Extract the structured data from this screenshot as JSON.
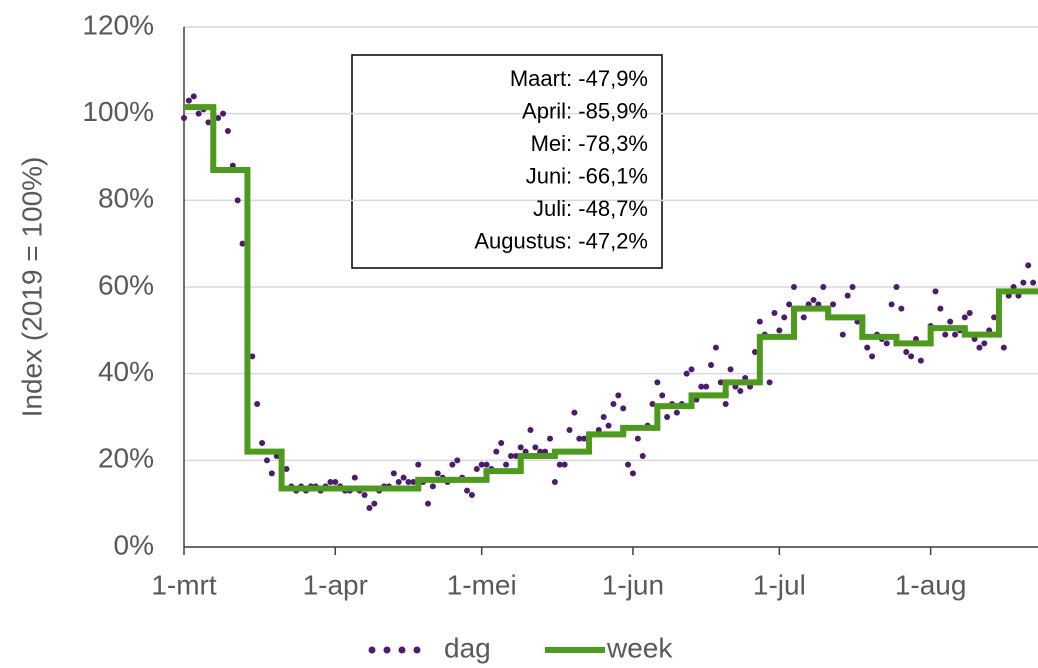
{
  "chart_data": {
    "type": "line",
    "ylabel": "Index (2019 = 100%)",
    "xlim": [
      0,
      175
    ],
    "xticks": [
      {
        "value": 0,
        "label": "1-mrt"
      },
      {
        "value": 31,
        "label": "1-apr"
      },
      {
        "value": 61,
        "label": "1-mei"
      },
      {
        "value": 92,
        "label": "1-jun"
      },
      {
        "value": 122,
        "label": "1-jul"
      },
      {
        "value": 153,
        "label": "1-aug"
      }
    ],
    "ylim": [
      0,
      120
    ],
    "yticks": [
      {
        "value": 0,
        "label": "0%"
      },
      {
        "value": 20,
        "label": "20%"
      },
      {
        "value": 40,
        "label": "40%"
      },
      {
        "value": 60,
        "label": "60%"
      },
      {
        "value": 80,
        "label": "80%"
      },
      {
        "value": 100,
        "label": "100%"
      },
      {
        "value": 120,
        "label": "120%"
      }
    ],
    "grid": true,
    "legend": "bottom",
    "annotations": [
      "Maart: -47,9%",
      "April: -85,9%",
      "Mei: -78,3%",
      "Juni: -66,1%",
      "Juli: -48,7%",
      "Augustus: -47,2%"
    ],
    "series": [
      {
        "name": "dag",
        "color": "#4b1c6e",
        "x": [
          0,
          1,
          2,
          3,
          4,
          5,
          6,
          7,
          8,
          9,
          10,
          11,
          12,
          13,
          14,
          15,
          16,
          17,
          18,
          19,
          20,
          21,
          22,
          23,
          24,
          25,
          26,
          27,
          28,
          29,
          30,
          31,
          32,
          33,
          34,
          35,
          36,
          37,
          38,
          39,
          40,
          41,
          42,
          43,
          44,
          45,
          46,
          47,
          48,
          49,
          50,
          51,
          52,
          53,
          54,
          55,
          56,
          57,
          58,
          59,
          60,
          61,
          62,
          63,
          64,
          65,
          66,
          67,
          68,
          69,
          70,
          71,
          72,
          73,
          74,
          75,
          76,
          77,
          78,
          79,
          80,
          81,
          82,
          83,
          84,
          85,
          86,
          87,
          88,
          89,
          90,
          91,
          92,
          93,
          94,
          95,
          96,
          97,
          98,
          99,
          100,
          101,
          102,
          103,
          104,
          105,
          106,
          107,
          108,
          109,
          110,
          111,
          112,
          113,
          114,
          115,
          116,
          117,
          118,
          119,
          120,
          121,
          122,
          123,
          124,
          125,
          126,
          127,
          128,
          129,
          130,
          131,
          132,
          133,
          134,
          135,
          136,
          137,
          138,
          139,
          140,
          141,
          142,
          143,
          144,
          145,
          146,
          147,
          148,
          149,
          150,
          151,
          152,
          153,
          154,
          155,
          156,
          157,
          158,
          159,
          160,
          161,
          162,
          163,
          164,
          165,
          166,
          167,
          168,
          169,
          170,
          171,
          172,
          173,
          174
        ],
        "values": [
          99,
          103,
          104,
          100,
          101,
          98,
          100,
          99,
          100,
          96,
          88,
          80,
          70,
          56,
          44,
          33,
          24,
          20,
          17,
          21,
          22,
          18,
          14,
          13,
          14,
          13,
          14,
          14,
          13,
          14,
          15,
          15,
          14,
          13,
          13,
          16,
          13,
          12,
          9,
          10,
          13,
          14,
          14,
          17,
          15,
          16,
          15,
          15,
          19,
          15,
          10,
          14,
          17,
          16,
          15,
          19,
          20,
          16,
          13,
          12,
          18,
          19,
          19,
          18,
          22,
          24,
          19,
          21,
          21,
          23,
          22,
          27,
          23,
          22,
          22,
          25,
          15,
          19,
          19,
          27,
          31,
          25,
          25,
          26,
          26,
          27,
          30,
          28,
          33,
          35,
          32,
          19,
          17,
          25,
          21,
          28,
          33,
          38,
          35,
          30,
          33,
          31,
          33,
          40,
          41,
          34,
          37,
          37,
          42,
          46,
          38,
          33,
          41,
          37,
          36,
          39,
          37,
          45,
          52,
          49,
          38,
          54,
          50,
          53,
          56,
          60,
          55,
          53,
          56,
          57,
          56,
          60,
          55,
          56,
          53,
          49,
          58,
          60,
          52,
          51,
          46,
          44,
          49,
          48,
          47,
          56,
          60,
          55,
          45,
          44,
          48,
          43,
          47,
          51,
          59,
          55,
          49,
          52,
          49,
          50,
          53,
          54,
          48,
          46,
          47,
          50,
          53,
          51,
          46,
          58,
          60,
          58,
          61,
          65,
          61
        ]
      },
      {
        "name": "week",
        "color": "#4e9a1e",
        "x": [
          0,
          6,
          13,
          20,
          27,
          34,
          41,
          48,
          55,
          62,
          69,
          76,
          83,
          90,
          97,
          104,
          111,
          118,
          125,
          132,
          139,
          146,
          153,
          160,
          167
        ],
        "values": [
          101.5,
          87,
          22,
          13.5,
          13.5,
          13.5,
          13.5,
          15.5,
          15.5,
          17.5,
          21,
          22,
          26,
          27.5,
          32.5,
          35,
          38,
          48.5,
          55,
          53,
          48.5,
          47,
          50.5,
          49,
          59
        ]
      }
    ]
  }
}
